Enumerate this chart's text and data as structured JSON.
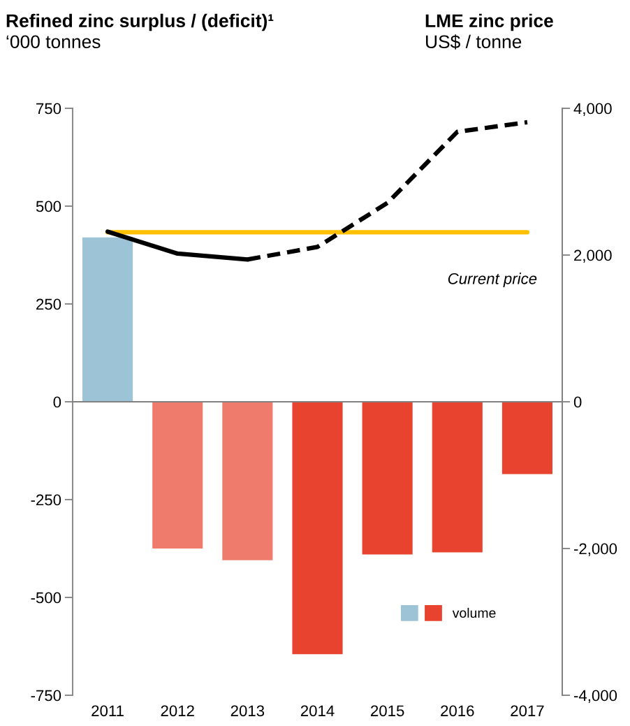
{
  "chart_data": {
    "type": "bar",
    "title": "Refined zinc surplus / (deficit)¹",
    "subtitle": "LME zinc price",
    "ylabel": "‘000 tonnes",
    "y2label": "US$ / tonne",
    "categories": [
      "2011",
      "2012",
      "2013",
      "2014",
      "2015",
      "2016",
      "2017"
    ],
    "series": [
      {
        "name": "volume",
        "colors": [
          "#9dc3d6",
          "#ee7b6c",
          "#ee7b6c",
          "#e8432e",
          "#e8432e",
          "#e8432e",
          "#e8432e"
        ],
        "values": [
          420,
          -375,
          -405,
          -645,
          -390,
          -385,
          -185
        ]
      },
      {
        "type": "line",
        "axis": "y2",
        "color": "#000000",
        "line_style": "solid",
        "values": [
          2320,
          2020,
          1940,
          null,
          null,
          null,
          null
        ]
      },
      {
        "type": "line",
        "axis": "y2",
        "color": "#000000",
        "line_style": "dashed",
        "values": [
          null,
          null,
          1940,
          2110,
          2710,
          3680,
          3810
        ]
      }
    ],
    "ref_lines": [
      {
        "axis": "y2",
        "value": 2310,
        "label": "Current price",
        "color": "#ffc000"
      }
    ],
    "ylim": [
      -750,
      750
    ],
    "yticks": [
      -750,
      -500,
      -250,
      0,
      250,
      500,
      750
    ],
    "y2lim": [
      -4000,
      4000
    ],
    "y2ticks": [
      {
        "value": -4000,
        "label": "-4,000"
      },
      {
        "value": -2000,
        "label": "-2,000"
      },
      0,
      {
        "value": 2000,
        "label": "2,000"
      },
      {
        "value": 4000,
        "label": "4,000"
      }
    ],
    "legend": "bottom right"
  }
}
